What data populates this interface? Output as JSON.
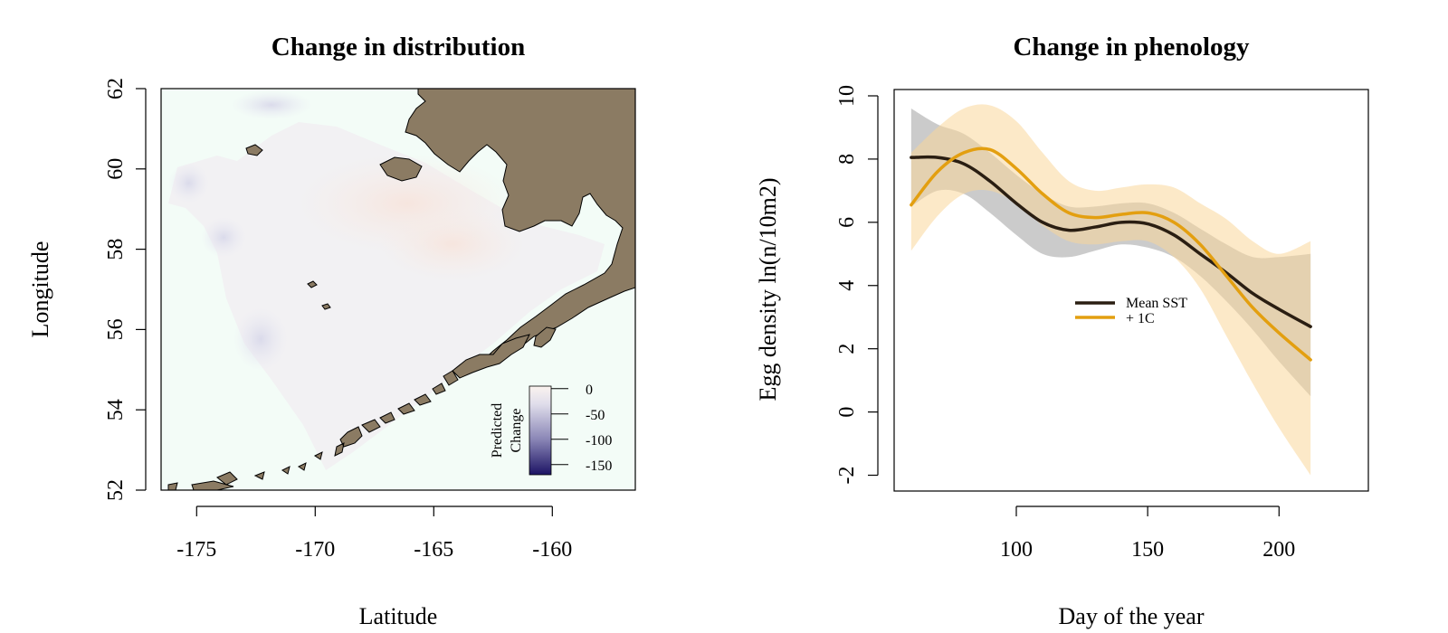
{
  "colors": {
    "land": "#8b7b63",
    "ocean": "#f3fcf7",
    "warm": "#f6e9e3",
    "cool": "#e9e9f3",
    "mean_line": "#2a1e12",
    "plus1_line": "#e39f10",
    "mean_band": "#b9b9b9",
    "plus1_band": "#fad79a"
  },
  "chart_data": [
    {
      "type": "heatmap",
      "title": "Change in distribution",
      "xlabel": "Latitude",
      "ylabel": "Longitude",
      "xlim": [
        -176.5,
        -156.5
      ],
      "ylim": [
        52,
        62
      ],
      "x_ticks": [
        -175,
        -170,
        -165,
        -160
      ],
      "y_ticks": [
        52,
        54,
        56,
        58,
        60,
        62
      ],
      "colorbar": {
        "title_line1": "Predicted",
        "title_line2": "Change",
        "range": [
          -170,
          5
        ],
        "ticks": [
          0,
          -50,
          -100,
          -150
        ],
        "colors": [
          "#1c1364",
          "#8a86b6",
          "#e0deeb",
          "#fbf3ef"
        ]
      },
      "legend": "bottom-right",
      "grid": false
    },
    {
      "type": "line",
      "title": "Change in phenology",
      "xlabel": "Day of the year",
      "ylabel": "Egg density ln(n/10m2)",
      "xlim": [
        53.5,
        234
      ],
      "ylim": [
        -2.5,
        10.2
      ],
      "x_ticks": [
        100,
        150,
        200
      ],
      "y_ticks": [
        -2,
        0,
        2,
        4,
        6,
        8,
        10
      ],
      "legend": "center",
      "grid": false,
      "x": [
        60,
        70,
        80,
        90,
        100,
        110,
        120,
        130,
        140,
        150,
        160,
        170,
        180,
        190,
        200,
        212
      ],
      "series": [
        {
          "name": "Mean SST",
          "values": [
            8.05,
            8.05,
            7.85,
            7.3,
            6.6,
            6.0,
            5.75,
            5.85,
            6.0,
            5.95,
            5.6,
            5.0,
            4.4,
            3.75,
            3.25,
            2.7
          ],
          "lower": [
            6.5,
            7.0,
            6.9,
            6.3,
            5.6,
            5.0,
            4.9,
            5.1,
            5.3,
            5.2,
            4.9,
            4.3,
            3.5,
            2.6,
            1.6,
            0.5
          ],
          "upper": [
            9.6,
            9.1,
            8.8,
            8.2,
            7.5,
            6.9,
            6.5,
            6.5,
            6.6,
            6.6,
            6.3,
            5.8,
            5.3,
            4.9,
            4.9,
            5.0
          ]
        },
        {
          "name": "+ 1C",
          "values": [
            6.55,
            7.6,
            8.2,
            8.3,
            7.7,
            6.9,
            6.3,
            6.15,
            6.25,
            6.3,
            6.0,
            5.3,
            4.3,
            3.3,
            2.5,
            1.65
          ],
          "lower": [
            5.1,
            6.2,
            6.9,
            7.0,
            6.6,
            5.9,
            5.4,
            5.3,
            5.4,
            5.4,
            4.9,
            3.9,
            2.4,
            0.9,
            -0.5,
            -2.0
          ],
          "upper": [
            8.2,
            9.0,
            9.6,
            9.7,
            9.2,
            8.2,
            7.3,
            7.0,
            7.1,
            7.2,
            7.1,
            6.6,
            6.1,
            5.4,
            5.0,
            5.4
          ]
        }
      ]
    }
  ]
}
